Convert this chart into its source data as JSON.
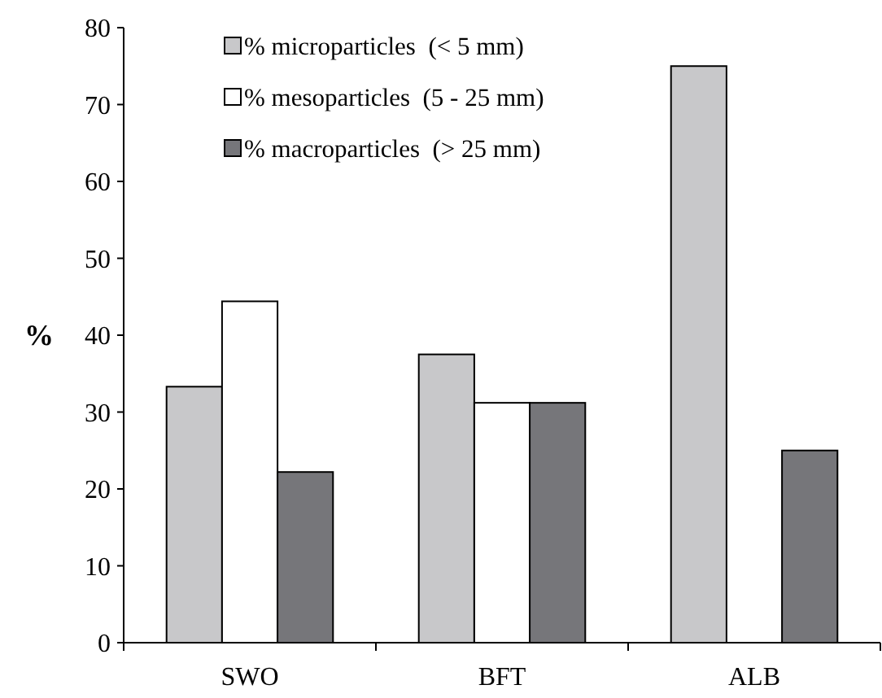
{
  "chart_data": {
    "type": "bar",
    "ylabel": "%",
    "categories": [
      "SWO",
      "BFT",
      "ALB"
    ],
    "series": [
      {
        "name": "% microparticles  (< 5 mm)",
        "color": "#c8c8ca",
        "values": [
          33.3,
          37.5,
          75
        ]
      },
      {
        "name": "% mesoparticles  (5 - 25 mm)",
        "color": "#ffffff",
        "values": [
          44.4,
          31.2,
          0
        ]
      },
      {
        "name": "% macroparticles  (> 25 mm)",
        "color": "#76767a",
        "values": [
          22.2,
          31.2,
          25
        ]
      }
    ],
    "ylim": [
      0,
      80
    ],
    "yticks": [
      0,
      10,
      20,
      30,
      40,
      50,
      60,
      70,
      80
    ],
    "grid": false,
    "legend": "top"
  }
}
